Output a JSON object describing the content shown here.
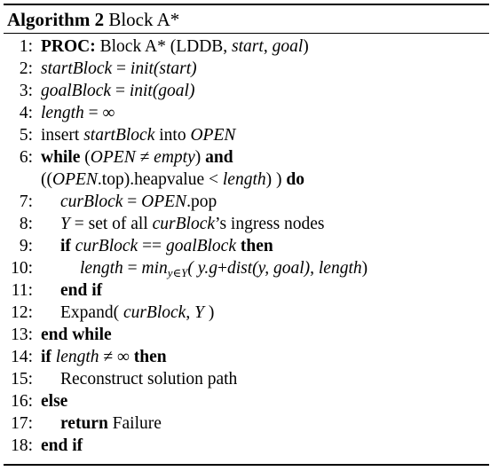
{
  "caption": {
    "label": "Algorithm 2",
    "title": "Block A*"
  },
  "lines": [
    {
      "num": "1:"
    },
    {
      "num": "2:"
    },
    {
      "num": "3:"
    },
    {
      "num": "4:"
    },
    {
      "num": "5:"
    },
    {
      "num": "6:"
    },
    {
      "num": "7:"
    },
    {
      "num": "8:"
    },
    {
      "num": "9:"
    },
    {
      "num": "10:"
    },
    {
      "num": "11:"
    },
    {
      "num": "12:"
    },
    {
      "num": "13:"
    },
    {
      "num": "14:"
    },
    {
      "num": "15:"
    },
    {
      "num": "16:"
    },
    {
      "num": "17:"
    },
    {
      "num": "18:"
    }
  ],
  "keywords": {
    "proc": "PROC:",
    "while": "while",
    "and": "and",
    "do": "do",
    "if": "if",
    "then": "then",
    "end_if": "end if",
    "end_while": "end while",
    "else": "else",
    "return": "return"
  },
  "text": {
    "l1_rest": "Block A* (LDDB, ",
    "start": "start",
    "comma": ", ",
    "goal": "goal",
    "close": ")",
    "startBlock": "startBlock",
    "goalBlock": "goalBlock",
    "eq": " = ",
    "init_start": "init(start)",
    "init_goal": "init(goal)",
    "length": "length",
    "infinity": "∞",
    "insert": "insert ",
    "into": " into ",
    "OPEN": "OPEN",
    "l6_open": " (",
    "neq": " ≠ ",
    "empty": "empty",
    "l6_close": ") ",
    "l6b_open": "((",
    "top_heap": ".top).heapvalue ",
    "lt": "< ",
    "l6b_close": ") ) ",
    "curBlock": "curBlock",
    "pop": ".pop",
    "Y": "Y",
    "l8_rest": " = set of all ",
    "l8_tail": "’s ingress nodes",
    "eqeq": " == ",
    "min": "min",
    "min_sub": "y∈Y",
    "l10_args": "( y.g",
    "plus": "+",
    "dist": "dist",
    "l10_dist_args": "(y, goal), length",
    "expand": "Expand( ",
    "expand_close": " )",
    "reconstruct": "Reconstruct solution path",
    "failure": "Failure"
  }
}
